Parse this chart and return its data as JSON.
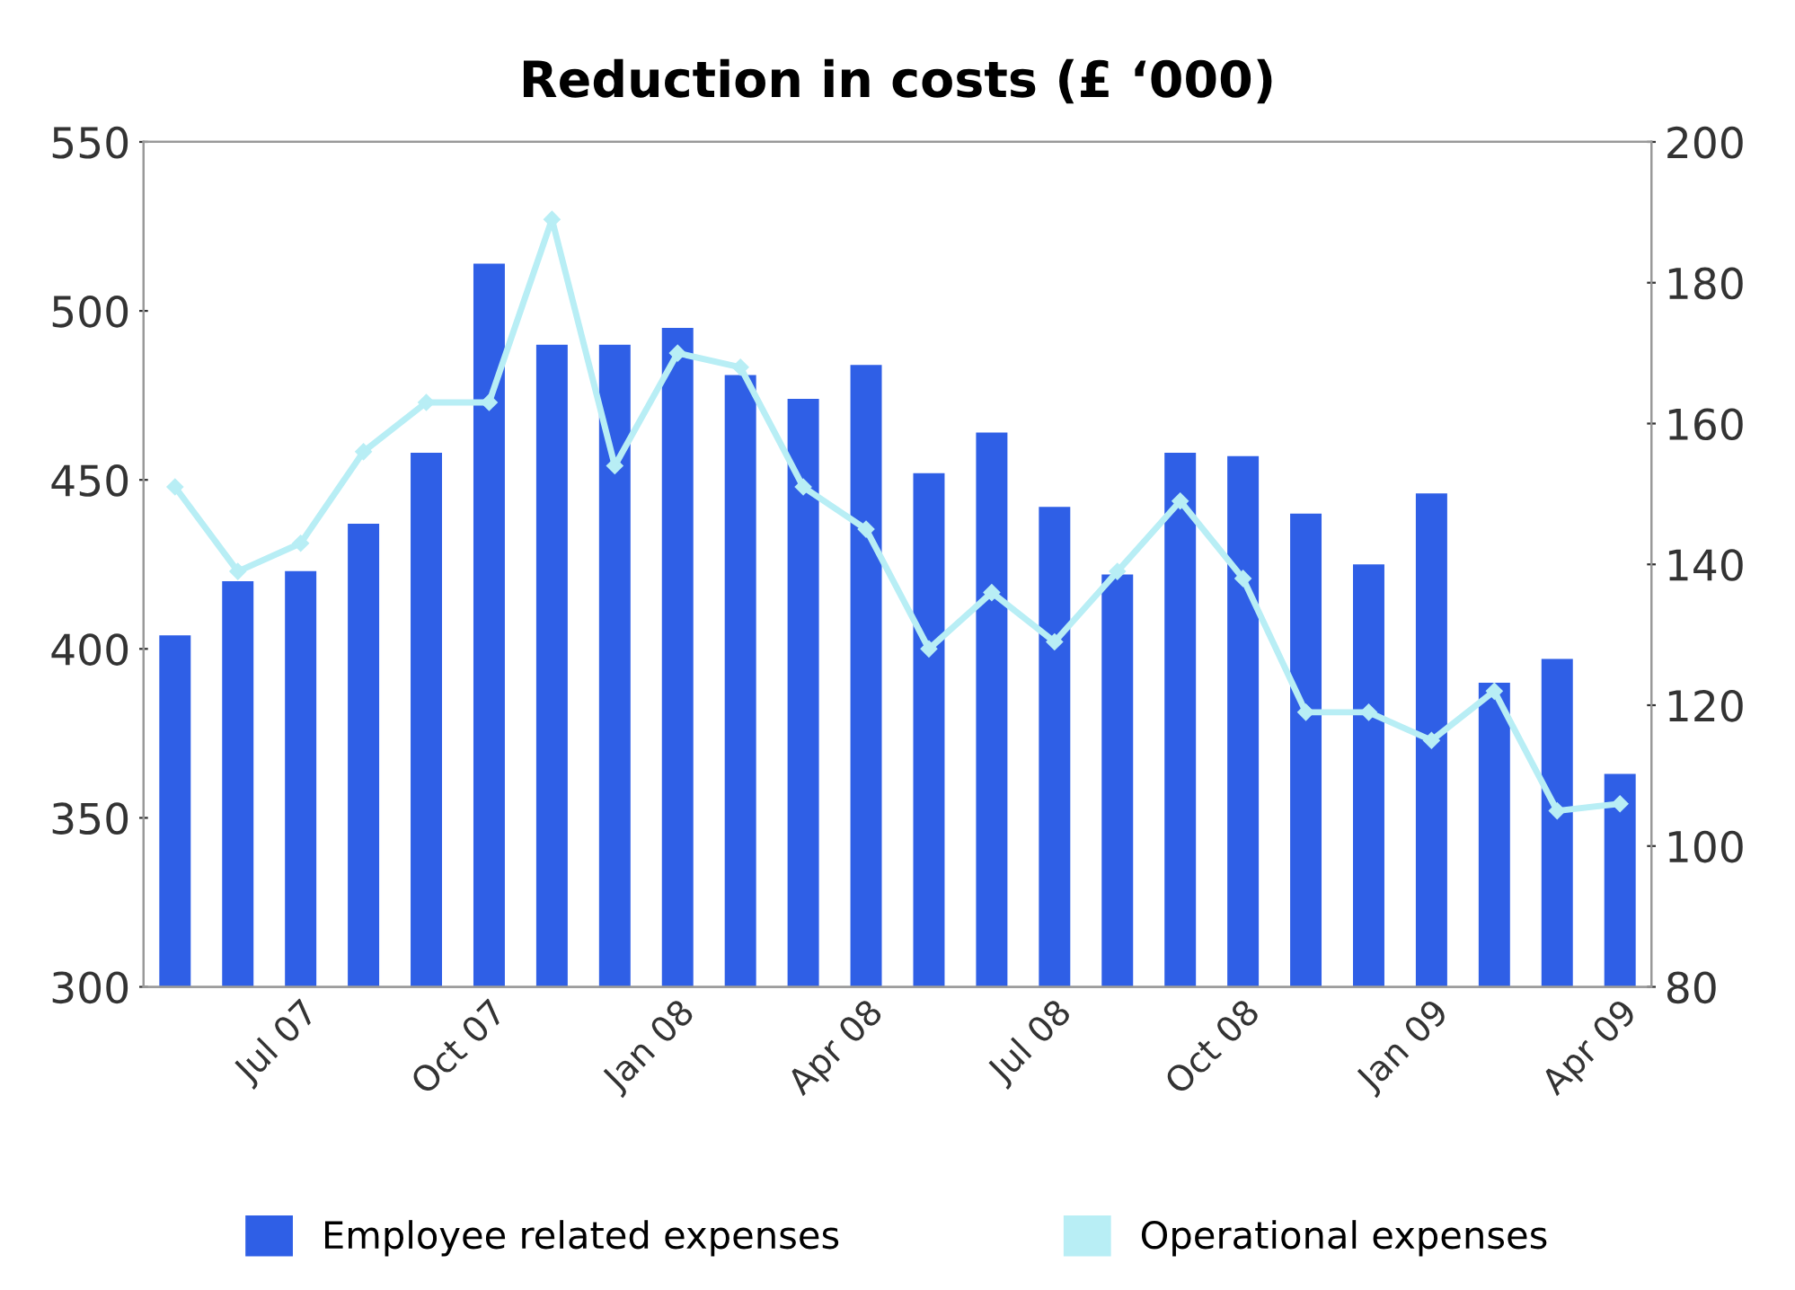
{
  "chart_data": {
    "type": "bar",
    "title": "Reduction in costs (£ ‘000)",
    "categories": [
      null,
      null,
      "Jul 07",
      null,
      null,
      "Oct 07",
      null,
      null,
      "Jan 08",
      null,
      null,
      "Apr 08",
      null,
      null,
      "Jul 08",
      null,
      null,
      "Oct 08",
      null,
      null,
      "Jan 09",
      null,
      null,
      "Apr 09"
    ],
    "series": [
      {
        "name": "Employee related expenses",
        "color": "#2f5fe6",
        "values": [
          404,
          420,
          423,
          437,
          458,
          514,
          490,
          490,
          495,
          481,
          474,
          484,
          452,
          464,
          442,
          422,
          458,
          457,
          440,
          425,
          446,
          390,
          397,
          363
        ]
      },
      {
        "name": "Operational expenses",
        "type": "line",
        "axis": "y2",
        "color": "#b8eef5",
        "marker": "diamond",
        "values": [
          151,
          139,
          143,
          156,
          163,
          163,
          189,
          154,
          170,
          168,
          151,
          145,
          128,
          136,
          129,
          139,
          149,
          138,
          119,
          119,
          115,
          122,
          105,
          106
        ]
      }
    ],
    "ylim": [
      300,
      550
    ],
    "yticks": [
      300,
      350,
      400,
      450,
      500,
      550
    ],
    "y2lim": [
      80,
      200
    ],
    "y2ticks": [
      80,
      100,
      120,
      140,
      160,
      180,
      200
    ],
    "legend": "bottom",
    "grid": false
  }
}
